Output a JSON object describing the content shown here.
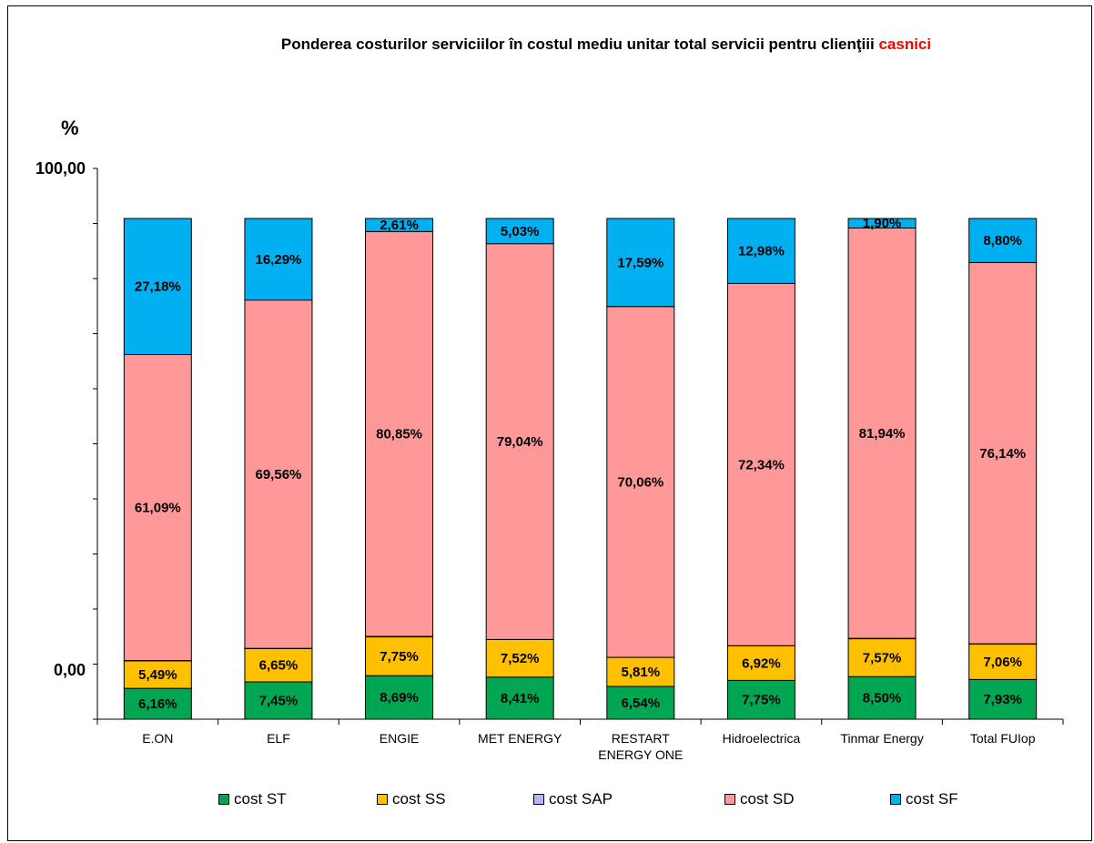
{
  "chart_data": {
    "type": "bar",
    "stacked": true,
    "title": "Ponderea costurilor serviciilor în costul mediu unitar total servicii pentru clienţiii",
    "title_highlight": "casnici",
    "ylabel": "%",
    "y_ticks": [
      "100,00",
      "0,00"
    ],
    "categories": [
      "E.ON",
      "ELF",
      "ENGIE",
      "MET ENERGY",
      "RESTART ENERGY ONE",
      "Hidroelectrica",
      "Tinmar Energy",
      "Total FUIop"
    ],
    "series": [
      {
        "name": "cost ST",
        "color": "#00a651",
        "values": [
          6.16,
          7.45,
          8.69,
          8.41,
          6.54,
          7.75,
          8.5,
          7.93
        ],
        "labels": [
          "6,16%",
          "7,45%",
          "8,69%",
          "8,41%",
          "6,54%",
          "7,75%",
          "8,50%",
          "7,93%"
        ]
      },
      {
        "name": "cost SS",
        "color": "#ffc000",
        "values": [
          5.49,
          6.65,
          7.75,
          7.52,
          5.81,
          6.92,
          7.57,
          7.06
        ],
        "labels": [
          "5,49%",
          "6,65%",
          "7,75%",
          "7,52%",
          "5,81%",
          "6,92%",
          "7,57%",
          "7,06%"
        ]
      },
      {
        "name": "cost SAP",
        "color": "#b4b4ff",
        "values": [
          0.08,
          0.05,
          0.1,
          0.0,
          0.0,
          0.01,
          0.09,
          0.07
        ],
        "labels": []
      },
      {
        "name": "cost SD",
        "color": "#ff9999",
        "values": [
          61.09,
          69.56,
          80.85,
          79.04,
          70.06,
          72.34,
          81.94,
          76.14
        ],
        "labels": [
          "61,09%",
          "69,56%",
          "80,85%",
          "79,04%",
          "70,06%",
          "72,34%",
          "81,94%",
          "76,14%"
        ]
      },
      {
        "name": "cost SF",
        "color": "#00b0f0",
        "values": [
          27.18,
          16.29,
          2.61,
          5.03,
          17.59,
          12.98,
          1.9,
          8.8
        ],
        "labels": [
          "27,18%",
          "16,29%",
          "2,61%",
          "5,03%",
          "17,59%",
          "12,98%",
          "1,90%",
          "8,80%"
        ]
      }
    ]
  }
}
